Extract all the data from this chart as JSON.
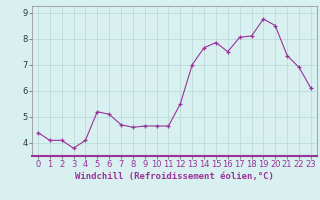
{
  "x": [
    0,
    1,
    2,
    3,
    4,
    5,
    6,
    7,
    8,
    9,
    10,
    11,
    12,
    13,
    14,
    15,
    16,
    17,
    18,
    19,
    20,
    21,
    22,
    23
  ],
  "y": [
    4.4,
    4.1,
    4.1,
    3.8,
    4.1,
    5.2,
    5.1,
    4.7,
    4.6,
    4.65,
    4.65,
    4.65,
    5.5,
    7.0,
    7.65,
    7.85,
    7.5,
    8.05,
    8.1,
    8.75,
    8.5,
    7.35,
    6.9,
    6.1
  ],
  "line_color": "#993399",
  "marker_color": "#993399",
  "bg_color": "#d8f0f0",
  "grid_color": "#b8d8d8",
  "axis_line_color": "#993399",
  "xlabel": "Windchill (Refroidissement éolien,°C)",
  "ylim": [
    3.5,
    9.25
  ],
  "yticks": [
    4,
    5,
    6,
    7,
    8,
    9
  ],
  "xtick_labels": [
    "0",
    "1",
    "2",
    "3",
    "4",
    "5",
    "6",
    "7",
    "8",
    "9",
    "10",
    "11",
    "12",
    "13",
    "14",
    "15",
    "16",
    "17",
    "18",
    "19",
    "20",
    "21",
    "22",
    "23"
  ],
  "xlabel_fontsize": 6.5,
  "tick_fontsize": 6.0
}
